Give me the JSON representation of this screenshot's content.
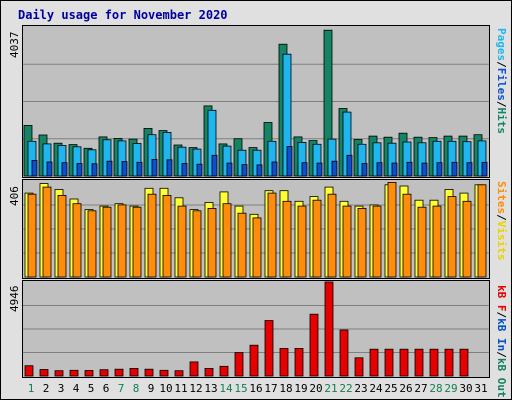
{
  "title": "Daily usage for November 2020",
  "colors": {
    "hits": "#158465",
    "files": "#1fb6f0",
    "pages": "#0a50d0",
    "visits": "#ffff33",
    "sites": "#ff8c0a",
    "kbin": "#0050c8",
    "kbout": "#148062",
    "kbf": "#e60000",
    "weekend": "#10804f",
    "weekday": "#000000"
  },
  "chart_data": [
    {
      "type": "bar",
      "name": "hits-files-pages",
      "max_label": "4037",
      "ylim": [
        0,
        4037
      ],
      "legend": [
        "Pages",
        "Files",
        "Hits"
      ],
      "categories": [
        "1",
        "2",
        "3",
        "4",
        "5",
        "6",
        "7",
        "8",
        "9",
        "10",
        "11",
        "12",
        "13",
        "14",
        "15",
        "16",
        "17",
        "18",
        "19",
        "20",
        "21",
        "22",
        "23",
        "24",
        "25",
        "26",
        "27",
        "28",
        "29",
        "30",
        "31"
      ],
      "series": [
        {
          "name": "Hits",
          "values": [
            1370,
            1110,
            890,
            850,
            750,
            1060,
            1020,
            1000,
            1290,
            1230,
            840,
            770,
            1900,
            870,
            1010,
            770,
            1450,
            3570,
            1060,
            960,
            3950,
            1830,
            990,
            1080,
            1050,
            1160,
            1050,
            1040,
            1080,
            1080,
            1120
          ]
        },
        {
          "name": "Files",
          "values": [
            940,
            870,
            830,
            790,
            710,
            980,
            950,
            880,
            1120,
            1180,
            780,
            730,
            1780,
            810,
            700,
            700,
            940,
            3300,
            910,
            860,
            1000,
            1730,
            860,
            900,
            890,
            920,
            900,
            940,
            940,
            930,
            950
          ]
        },
        {
          "name": "Pages",
          "values": [
            420,
            380,
            360,
            340,
            330,
            400,
            390,
            370,
            450,
            440,
            340,
            320,
            560,
            350,
            310,
            300,
            380,
            800,
            360,
            350,
            400,
            560,
            340,
            360,
            350,
            370,
            350,
            360,
            370,
            360,
            370
          ]
        }
      ]
    },
    {
      "type": "bar",
      "name": "visits-sites",
      "max_label": "406",
      "ylim": [
        0,
        406
      ],
      "legend": [
        "Sites",
        "Visits"
      ],
      "categories": [
        "1",
        "2",
        "3",
        "4",
        "5",
        "6",
        "7",
        "8",
        "9",
        "10",
        "11",
        "12",
        "13",
        "14",
        "15",
        "16",
        "17",
        "18",
        "19",
        "20",
        "21",
        "22",
        "23",
        "24",
        "25",
        "26",
        "27",
        "28",
        "29",
        "30",
        "31"
      ],
      "series": [
        {
          "name": "Visits",
          "values": [
            355,
            395,
            370,
            330,
            285,
            300,
            310,
            300,
            375,
            375,
            335,
            285,
            315,
            360,
            300,
            265,
            365,
            365,
            320,
            340,
            380,
            320,
            300,
            305,
            390,
            385,
            325,
            325,
            370,
            355,
            390
          ]
        },
        {
          "name": "Sites",
          "values": [
            350,
            380,
            345,
            310,
            280,
            295,
            305,
            295,
            350,
            345,
            300,
            280,
            290,
            310,
            270,
            250,
            355,
            320,
            300,
            325,
            350,
            300,
            290,
            300,
            400,
            350,
            295,
            300,
            340,
            320,
            390
          ]
        }
      ]
    },
    {
      "type": "bar",
      "name": "kbf-kbin-kbout",
      "max_label": "4946",
      "ylim": [
        0,
        4946
      ],
      "legend": [
        "kB F",
        "kB In",
        "kB Out"
      ],
      "categories": [
        "1",
        "2",
        "3",
        "4",
        "5",
        "6",
        "7",
        "8",
        "9",
        "10",
        "11",
        "12",
        "13",
        "14",
        "15",
        "16",
        "17",
        "18",
        "19",
        "20",
        "21",
        "22",
        "23",
        "24",
        "25",
        "26",
        "27",
        "28",
        "29",
        "30",
        "31"
      ],
      "series": [
        {
          "name": "kB F",
          "values": [
            540,
            340,
            280,
            300,
            290,
            330,
            360,
            400,
            360,
            300,
            280,
            740,
            400,
            510,
            1230,
            1620,
            2920,
            1450,
            1450,
            3250,
            4946,
            2420,
            960,
            1410,
            1410,
            1410,
            1410,
            1410,
            1410,
            1410,
            0
          ]
        },
        {
          "name": "kB In",
          "values": [
            0,
            0,
            0,
            0,
            0,
            0,
            0,
            0,
            0,
            0,
            0,
            0,
            0,
            0,
            0,
            0,
            0,
            0,
            0,
            0,
            0,
            0,
            0,
            0,
            0,
            0,
            0,
            0,
            0,
            0,
            0
          ]
        },
        {
          "name": "kB Out",
          "values": [
            0,
            0,
            0,
            0,
            0,
            0,
            0,
            0,
            0,
            0,
            0,
            0,
            0,
            0,
            0,
            0,
            0,
            0,
            0,
            0,
            0,
            0,
            0,
            0,
            0,
            0,
            0,
            0,
            0,
            0,
            0
          ]
        }
      ]
    }
  ],
  "day_labels": [
    "1",
    "2",
    "3",
    "4",
    "5",
    "6",
    "7",
    "8",
    "9",
    "10",
    "11",
    "12",
    "13",
    "14",
    "15",
    "16",
    "17",
    "18",
    "19",
    "20",
    "21",
    "22",
    "23",
    "24",
    "25",
    "26",
    "27",
    "28",
    "29",
    "30",
    "31"
  ],
  "weekend_days": [
    1,
    7,
    8,
    14,
    15,
    21,
    22,
    28,
    29
  ]
}
